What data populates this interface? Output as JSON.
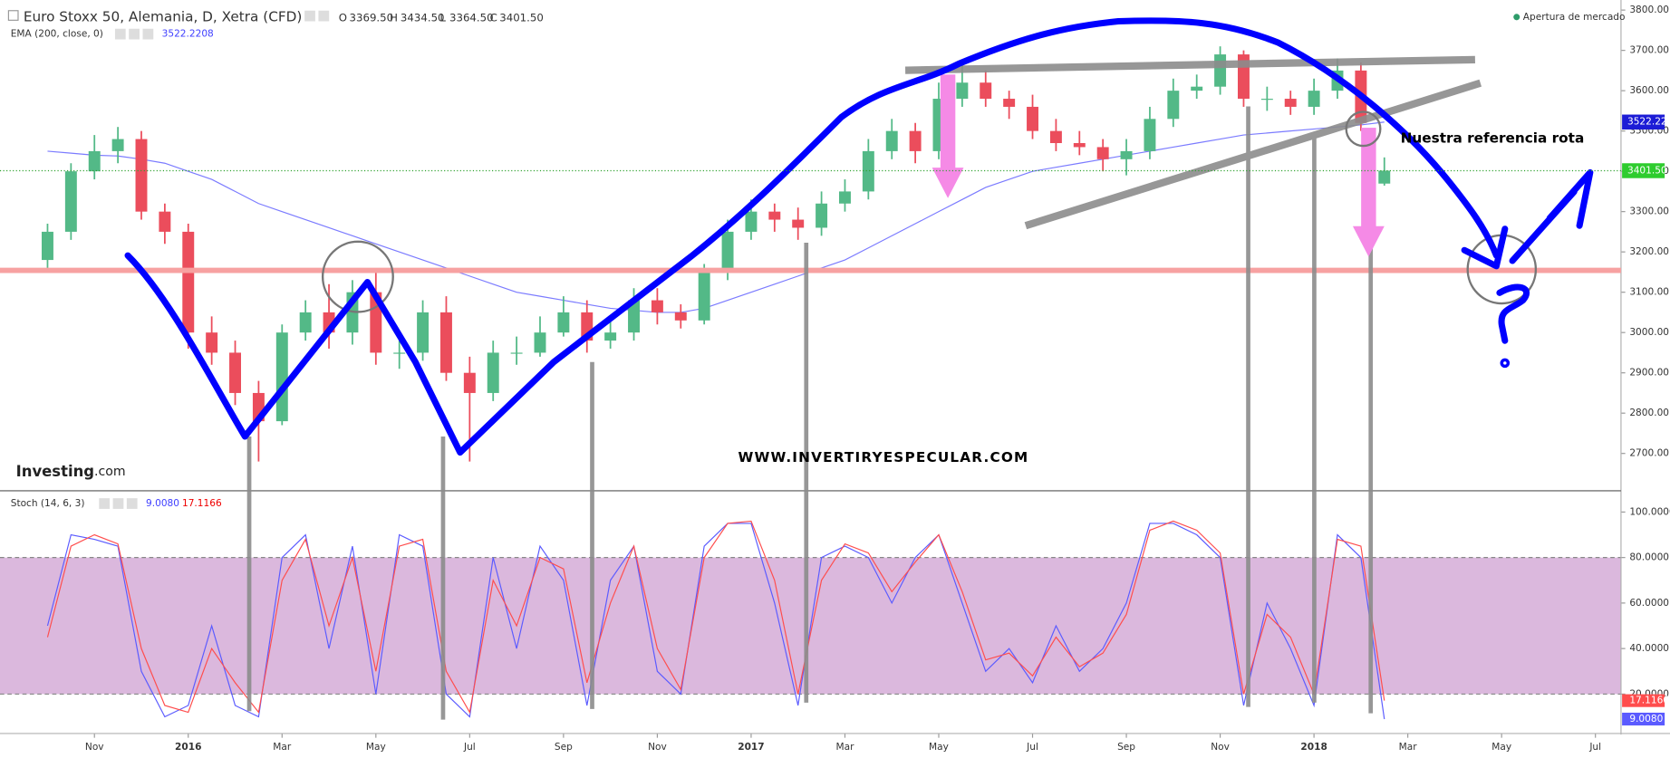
{
  "chart_data": [
    {
      "type": "candlestick",
      "title": "Euro Stoxx 50, Alemania, D, Xetra (CFD)",
      "last_labels": {
        "open_name": "O",
        "open": "3369.50",
        "high_name": "H",
        "high": "3434.50",
        "low_name": "L",
        "low": "3364.50",
        "close_name": "C",
        "close": "3401.50"
      },
      "status": "Apertura de mercado",
      "logo": [
        "Investing",
        ".com"
      ],
      "annotations": [
        "WWW.INVERTIRYESPECULAR.COM",
        "Nuestra referencia rota"
      ],
      "up_color": "#53b987",
      "down_color": "#eb4d5c",
      "open": [
        3180,
        3250,
        3400,
        3450,
        3480,
        3300,
        3250,
        3000,
        2950,
        2850,
        2780,
        3000,
        3050,
        3000,
        3100,
        2950,
        2950,
        3050,
        2900,
        2850,
        2950,
        2950,
        3000,
        3050,
        2980,
        3000,
        3080,
        3050,
        3030,
        3150,
        3250,
        3300,
        3280,
        3260,
        3320,
        3350,
        3450,
        3500,
        3450,
        3580,
        3620,
        3580,
        3560,
        3500,
        3470,
        3460,
        3430,
        3450,
        3530,
        3600,
        3610,
        3690,
        3580,
        3580,
        3560,
        3600,
        3650,
        3369.5
      ],
      "high": [
        3270,
        3420,
        3490,
        3510,
        3500,
        3320,
        3270,
        3040,
        2980,
        2880,
        3020,
        3080,
        3120,
        3130,
        3160,
        2980,
        3080,
        3090,
        2940,
        2980,
        2990,
        3040,
        3090,
        3080,
        3030,
        3110,
        3110,
        3070,
        3170,
        3280,
        3330,
        3320,
        3310,
        3350,
        3380,
        3480,
        3530,
        3520,
        3620,
        3670,
        3650,
        3600,
        3590,
        3530,
        3500,
        3480,
        3480,
        3560,
        3630,
        3640,
        3710,
        3700,
        3610,
        3600,
        3630,
        3680,
        3670,
        3434.5
      ],
      "low": [
        3150,
        3230,
        3380,
        3420,
        3280,
        3220,
        2960,
        2920,
        2820,
        2680,
        2770,
        2980,
        2960,
        2970,
        2920,
        2910,
        2930,
        2880,
        2680,
        2830,
        2920,
        2940,
        2990,
        2950,
        2960,
        2980,
        3020,
        3010,
        3020,
        3130,
        3230,
        3250,
        3230,
        3240,
        3300,
        3330,
        3430,
        3420,
        3430,
        3560,
        3560,
        3530,
        3480,
        3450,
        3440,
        3400,
        3390,
        3430,
        3510,
        3580,
        3590,
        3560,
        3550,
        3540,
        3540,
        3580,
        3500,
        3364.5
      ],
      "close": [
        3250,
        3400,
        3450,
        3480,
        3300,
        3250,
        3000,
        2950,
        2850,
        2780,
        3000,
        3050,
        3000,
        3100,
        2950,
        2950,
        3050,
        2900,
        2850,
        2950,
        2950,
        3000,
        3050,
        2980,
        3000,
        3080,
        3050,
        3030,
        3150,
        3250,
        3300,
        3280,
        3260,
        3320,
        3350,
        3450,
        3500,
        3450,
        3580,
        3620,
        3580,
        3560,
        3500,
        3470,
        3460,
        3430,
        3450,
        3530,
        3600,
        3610,
        3690,
        3580,
        3580,
        3560,
        3600,
        3650,
        3520,
        3401.5
      ],
      "close_badge": "3401.50",
      "ema": {
        "name": "EMA (200, close, 0)",
        "value_label": "3522.2208",
        "badge": "3522.22",
        "color": "#7b7bff",
        "values": [
          3450,
          3445,
          3440,
          3438,
          3430,
          3420,
          3400,
          3380,
          3350,
          3320,
          3300,
          3280,
          3260,
          3240,
          3220,
          3200,
          3180,
          3160,
          3140,
          3120,
          3100,
          3090,
          3080,
          3070,
          3060,
          3055,
          3050,
          3050,
          3060,
          3080,
          3100,
          3120,
          3140,
          3160,
          3180,
          3210,
          3240,
          3270,
          3300,
          3330,
          3360,
          3380,
          3400,
          3410,
          3420,
          3430,
          3440,
          3450,
          3460,
          3470,
          3480,
          3490,
          3495,
          3500,
          3505,
          3510,
          3515,
          3522.2208
        ]
      },
      "xlim": [
        -1.8,
        67
      ],
      "xticks": [
        {
          "value": 2,
          "label": "Nov"
        },
        {
          "value": 6,
          "label": "2016"
        },
        {
          "value": 10,
          "label": "Mar"
        },
        {
          "value": 14,
          "label": "May"
        },
        {
          "value": 18,
          "label": "Jul"
        },
        {
          "value": 22,
          "label": "Sep"
        },
        {
          "value": 26,
          "label": "Nov"
        },
        {
          "value": 30,
          "label": "2017"
        },
        {
          "value": 34,
          "label": "Mar"
        },
        {
          "value": 38,
          "label": "May"
        },
        {
          "value": 42,
          "label": "Jul"
        },
        {
          "value": 46,
          "label": "Sep"
        },
        {
          "value": 50,
          "label": "Nov"
        },
        {
          "value": 54,
          "label": "2018"
        },
        {
          "value": 58,
          "label": "Mar"
        },
        {
          "value": 62,
          "label": "May"
        },
        {
          "value": 66,
          "label": "Jul"
        }
      ],
      "ylim": [
        2610,
        3825
      ],
      "yticks": [
        {
          "value": 2700,
          "label": "2700.00"
        },
        {
          "value": 2800,
          "label": "2800.00"
        },
        {
          "value": 2900,
          "label": "2900.00"
        },
        {
          "value": 3000,
          "label": "3000.00"
        },
        {
          "value": 3100,
          "label": "3100.00"
        },
        {
          "value": 3200,
          "label": "3200.00"
        },
        {
          "value": 3300,
          "label": "3300.00"
        },
        {
          "value": 3400,
          "label": "3400.00"
        },
        {
          "value": 3500,
          "label": "3500.00"
        },
        {
          "value": 3600,
          "label": "3600.00"
        },
        {
          "value": 3700,
          "label": "3700.00"
        },
        {
          "value": 3800,
          "label": "3800.00"
        }
      ]
    },
    {
      "type": "line",
      "title": "Stoch (14, 6, 3)",
      "series": [
        {
          "color": "#5b5bff",
          "last_label": "9.0080",
          "values": [
            50,
            90,
            88,
            85,
            30,
            10,
            15,
            50,
            15,
            10,
            80,
            90,
            40,
            85,
            20,
            90,
            85,
            20,
            10,
            80,
            40,
            85,
            70,
            15,
            70,
            85,
            30,
            20,
            85,
            95,
            95,
            60,
            15,
            80,
            85,
            80,
            60,
            80,
            90,
            60,
            30,
            40,
            25,
            50,
            30,
            40,
            60,
            95,
            95,
            90,
            80,
            15,
            60,
            40,
            15,
            90,
            80,
            9.008
          ]
        },
        {
          "color": "#ff4d4d",
          "last_label": "17.1166",
          "values": [
            45,
            85,
            90,
            86,
            40,
            15,
            12,
            40,
            25,
            12,
            70,
            88,
            50,
            80,
            30,
            85,
            88,
            30,
            12,
            70,
            50,
            80,
            75,
            25,
            60,
            85,
            40,
            22,
            80,
            95,
            96,
            70,
            20,
            70,
            86,
            82,
            65,
            78,
            90,
            65,
            35,
            38,
            28,
            45,
            32,
            38,
            55,
            92,
            96,
            92,
            82,
            20,
            55,
            45,
            20,
            88,
            85,
            17.1166
          ]
        }
      ],
      "band": [
        20,
        80
      ],
      "xlim": [
        -1.8,
        67
      ],
      "ylim": [
        3.6,
        108.4
      ],
      "yticks": [
        {
          "value": 20,
          "label": "20.0000"
        },
        {
          "value": 40,
          "label": "40.0000"
        },
        {
          "value": 60,
          "label": "60.0000"
        },
        {
          "value": 80,
          "label": "80.0000"
        },
        {
          "value": 100,
          "label": "100.0000"
        }
      ]
    }
  ]
}
